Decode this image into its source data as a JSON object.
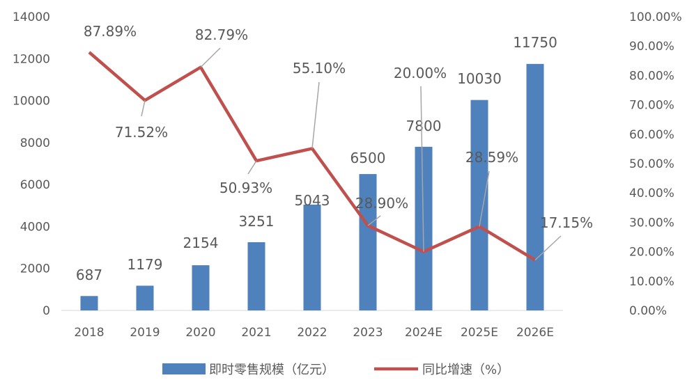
{
  "chart_data": {
    "type": "bar+line",
    "categories": [
      "2018",
      "2019",
      "2020",
      "2021",
      "2022",
      "2023",
      "2024E",
      "2025E",
      "2026E"
    ],
    "series": [
      {
        "name": "即时零售规模（亿元）",
        "type": "bar",
        "axis": "left",
        "color": "#4f81bd",
        "values": [
          687,
          1179,
          2154,
          3251,
          5043,
          6500,
          7800,
          10030,
          11750
        ],
        "labels": [
          "687",
          "1179",
          "2154",
          "3251",
          "5043",
          "6500",
          "7800",
          "10030",
          "11750"
        ]
      },
      {
        "name": "同比增速（%）",
        "type": "line",
        "axis": "right",
        "color": "#c0504d",
        "values": [
          87.89,
          71.52,
          82.79,
          50.93,
          55.1,
          28.9,
          20.0,
          28.59,
          17.15
        ],
        "labels": [
          "87.89%",
          "71.52%",
          "82.79%",
          "50.93%",
          "55.10%",
          "28.90%",
          "20.00%",
          "28.59%",
          "17.15%"
        ]
      }
    ],
    "left_axis": {
      "ylim": [
        0,
        14000
      ],
      "ticks": [
        "0",
        "2000",
        "4000",
        "6000",
        "8000",
        "10000",
        "12000",
        "14000"
      ]
    },
    "right_axis": {
      "ylim": [
        0,
        100
      ],
      "ticks": [
        "0.00%",
        "10.00%",
        "20.00%",
        "30.00%",
        "40.00%",
        "50.00%",
        "60.00%",
        "70.00%",
        "80.00%",
        "90.00%",
        "100.00%"
      ]
    },
    "grid": false,
    "legend": "bottom",
    "title": "",
    "xlabel": "",
    "ylabel": ""
  }
}
